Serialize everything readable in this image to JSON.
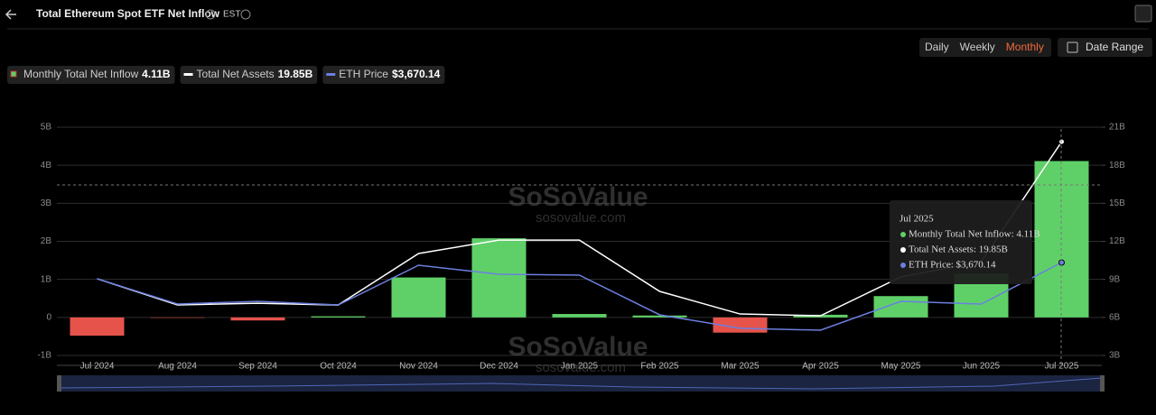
{
  "ui": {
    "title": "Total Ethereum Spot ETF Net Inflow",
    "timezone": "EST",
    "periods": [
      "Daily",
      "Weekly",
      "Monthly"
    ],
    "active_period_index": 2,
    "date_range": "Date Range",
    "watermark": "SoSoValue",
    "watermark_url": "sosovalue.com"
  },
  "chart_data": {
    "type": "combo",
    "categories": [
      "Jul 2024",
      "Aug 2024",
      "Sep 2024",
      "Oct 2024",
      "Nov 2024",
      "Dec 2024",
      "Jan 2025",
      "Feb 2025",
      "Mar 2025",
      "Apr 2025",
      "May 2025",
      "Jun 2025",
      "Jul 2025"
    ],
    "series": [
      {
        "name": "Monthly Total Net Inflow",
        "kind": "bar",
        "color": "#5fd068",
        "negative_color": "#e5534b",
        "legend_value": "4.11B",
        "values": [
          -0.48,
          -0.01,
          -0.08,
          0.03,
          1.05,
          2.08,
          0.09,
          0.05,
          -0.4,
          0.07,
          0.56,
          1.16,
          4.11
        ]
      },
      {
        "name": "Total Net Assets",
        "kind": "line",
        "axis": "y2",
        "color": "#ffffff",
        "legend_value": "19.85B",
        "values": [
          9.05,
          6.98,
          7.12,
          6.98,
          11.04,
          12.1,
          12.1,
          8.05,
          6.27,
          6.13,
          9.19,
          10.4,
          19.85
        ]
      },
      {
        "name": "ETH Price",
        "kind": "line",
        "axis": "hidden",
        "color": "#6b7fe0",
        "legend_value": "$3,670.14",
        "values": [
          3219,
          2517,
          2592,
          2492,
          3595,
          3345,
          3320,
          2217,
          1842,
          1790,
          2592,
          2517,
          3670.14
        ]
      }
    ],
    "ylim": [
      -1,
      5
    ],
    "yticks": [
      {
        "value": -1,
        "label": "-1B"
      },
      0,
      {
        "value": 1,
        "label": "1B"
      },
      {
        "value": 2,
        "label": "2B"
      },
      {
        "value": 3,
        "label": "3B"
      },
      {
        "value": 4,
        "label": "4B"
      },
      {
        "value": 5,
        "label": "5B"
      }
    ],
    "y2lim": [
      3,
      21
    ],
    "y2ticks": [
      {
        "value": 3,
        "label": "3B"
      },
      {
        "value": 6,
        "label": "6B"
      },
      {
        "value": 9,
        "label": "9B"
      },
      {
        "value": 12,
        "label": "12B"
      },
      {
        "value": 15,
        "label": "15B"
      },
      {
        "value": 18,
        "label": "18B"
      },
      {
        "value": 21,
        "label": "21B"
      }
    ],
    "grid": true,
    "tooltip": {
      "title": "Jul 2025",
      "rows": [
        "Monthly Total Net Inflow: 4.11B",
        "Total Net Assets: 19.85B",
        "ETH Price: $3,670.14"
      ]
    }
  }
}
